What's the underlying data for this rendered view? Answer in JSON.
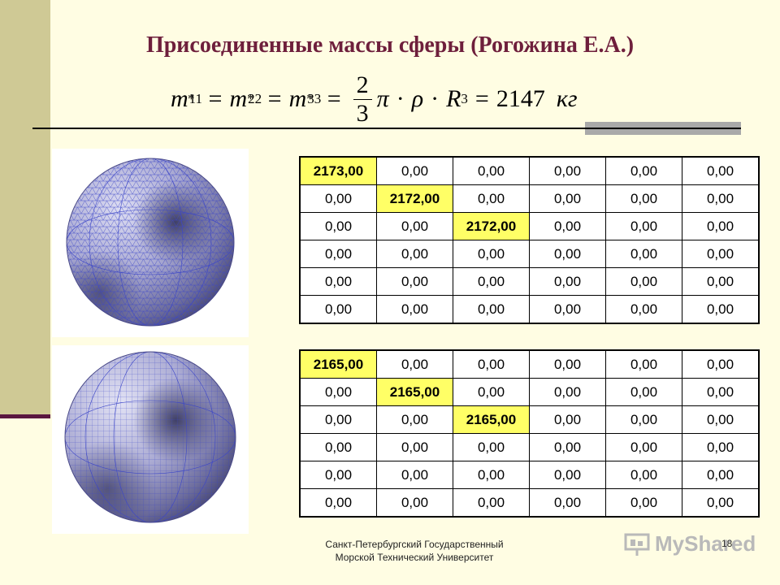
{
  "title": "Присоединенные массы сферы (Рогожина Е.А.)",
  "formula": {
    "m": "m",
    "star": "*",
    "idx1": "11",
    "idx2": "22",
    "idx3": "33",
    "eq": "=",
    "num": "2",
    "den": "3",
    "pi": "π",
    "dot": "·",
    "rho": "ρ",
    "R": "R",
    "pow": "3",
    "value": "2147",
    "unit": "кг"
  },
  "tables": [
    {
      "rows": [
        [
          "2173,00",
          "0,00",
          "0,00",
          "0,00",
          "0,00",
          "0,00"
        ],
        [
          "0,00",
          "2172,00",
          "0,00",
          "0,00",
          "0,00",
          "0,00"
        ],
        [
          "0,00",
          "0,00",
          "2172,00",
          "0,00",
          "0,00",
          "0,00"
        ],
        [
          "0,00",
          "0,00",
          "0,00",
          "0,00",
          "0,00",
          "0,00"
        ],
        [
          "0,00",
          "0,00",
          "0,00",
          "0,00",
          "0,00",
          "0,00"
        ],
        [
          "0,00",
          "0,00",
          "0,00",
          "0,00",
          "0,00",
          "0,00"
        ]
      ]
    },
    {
      "rows": [
        [
          "2165,00",
          "0,00",
          "0,00",
          "0,00",
          "0,00",
          "0,00"
        ],
        [
          "0,00",
          "2165,00",
          "0,00",
          "0,00",
          "0,00",
          "0,00"
        ],
        [
          "0,00",
          "0,00",
          "2165,00",
          "0,00",
          "0,00",
          "0,00"
        ],
        [
          "0,00",
          "0,00",
          "0,00",
          "0,00",
          "0,00",
          "0,00"
        ],
        [
          "0,00",
          "0,00",
          "0,00",
          "0,00",
          "0,00",
          "0,00"
        ],
        [
          "0,00",
          "0,00",
          "0,00",
          "0,00",
          "0,00",
          "0,00"
        ]
      ]
    }
  ],
  "footer": {
    "line1": "Санкт-Петербургский Государственный",
    "line2": "Морской Технический Университет"
  },
  "page_number": "18",
  "watermark": "MyShared",
  "colors": {
    "background": "#fffde3",
    "title": "#6e1f3c",
    "highlight": "#ffff66",
    "mesh": "#3c46c8"
  },
  "icons": [
    "sphere-triangular-mesh",
    "sphere-quad-mesh",
    "presentation-board-icon"
  ]
}
